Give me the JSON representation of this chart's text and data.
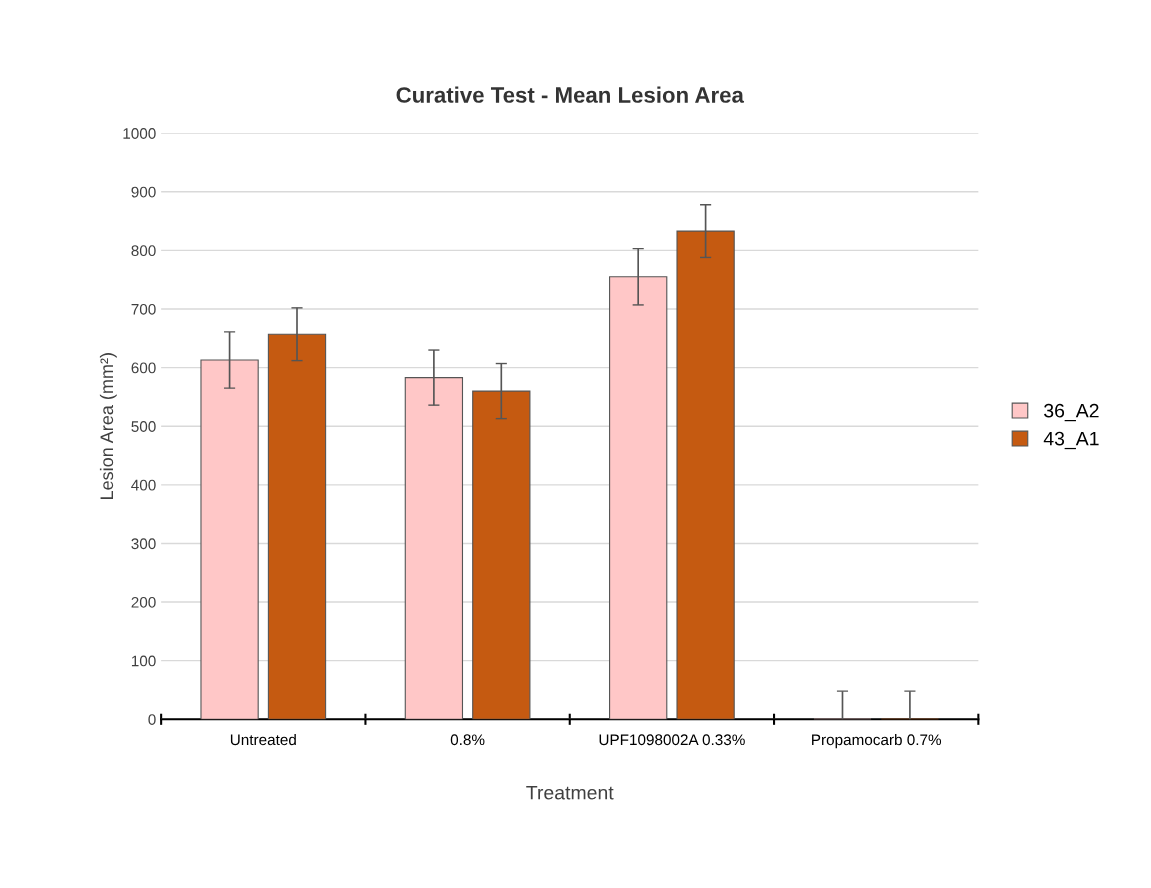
{
  "chart_data": {
    "type": "bar",
    "title": "Curative Test - Mean Lesion Area",
    "xlabel": "Treatment",
    "ylabel": "Lesion Area (mm²)",
    "categories": [
      "Untreated",
      "0.8%",
      "UPF1098002A 0.33%",
      "Propamocarb 0.7%"
    ],
    "series": [
      {
        "name": "36_A2",
        "color": "#ffc7c7",
        "values": [
          613,
          583,
          755,
          0
        ],
        "errors": [
          48,
          47,
          48,
          48
        ]
      },
      {
        "name": "43_A1",
        "color": "#c55a11",
        "values": [
          657,
          560,
          833,
          0
        ],
        "errors": [
          45,
          47,
          45,
          48
        ]
      }
    ],
    "ylim": [
      0,
      1000
    ],
    "yticks": [
      0,
      100,
      200,
      300,
      400,
      500,
      600,
      700,
      800,
      900,
      1000
    ],
    "grid": "y",
    "legend": "right"
  }
}
